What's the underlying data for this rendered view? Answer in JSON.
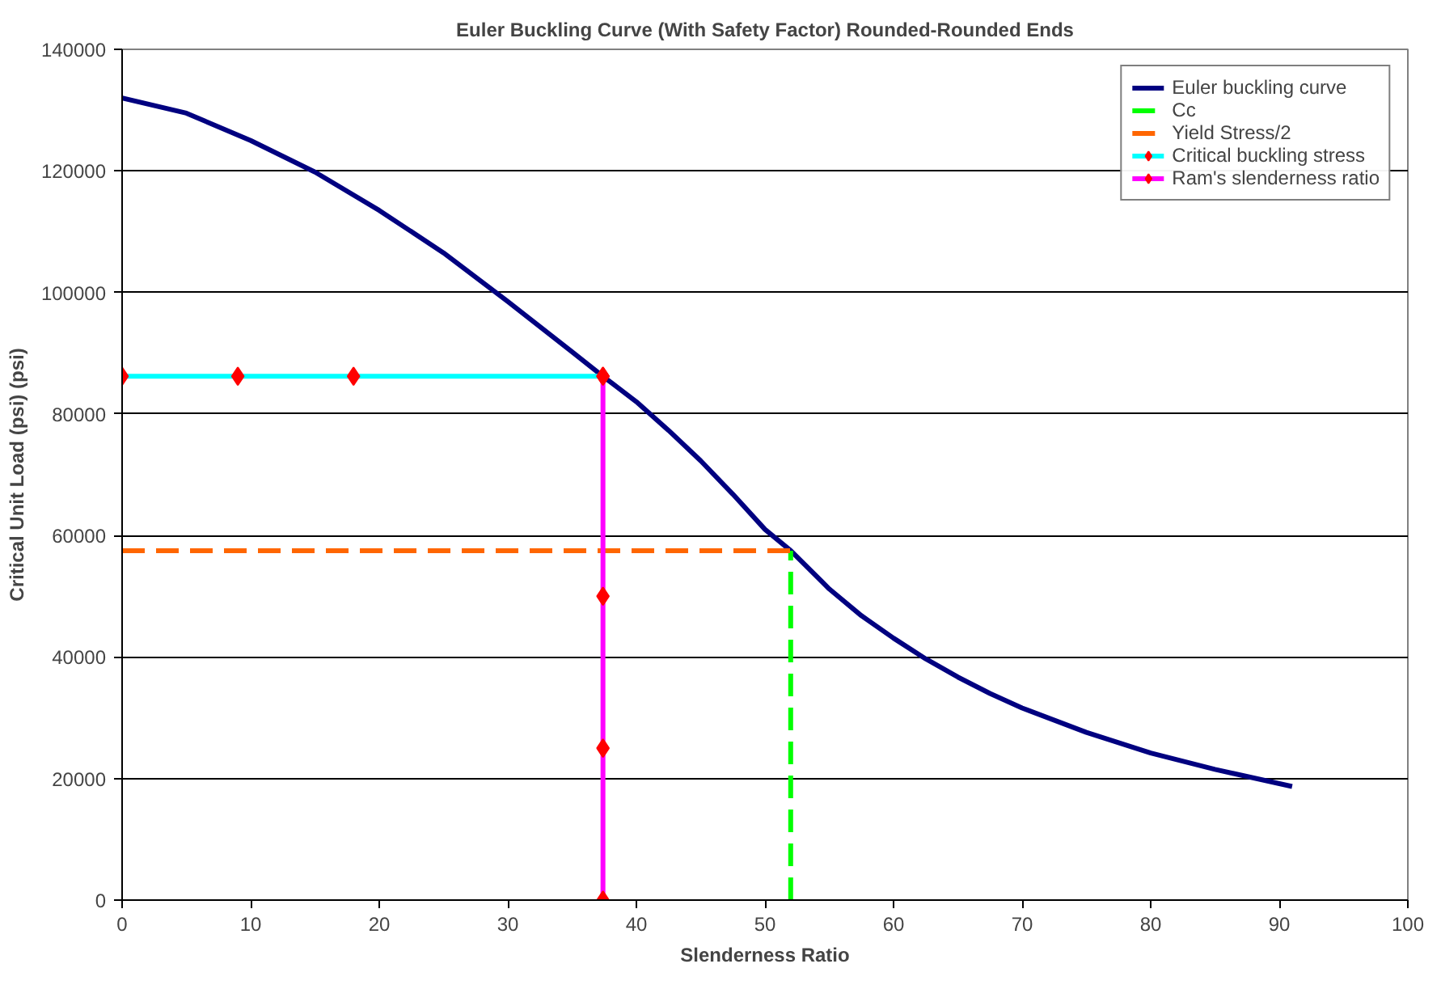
{
  "chart_data": {
    "type": "line",
    "title": "Euler Buckling Curve (With Safety Factor) Rounded-Rounded Ends",
    "xlabel": "Slenderness Ratio",
    "ylabel": "Critical Unit Load (psi) (psi)",
    "xlim": [
      0,
      100
    ],
    "xticks": [
      0,
      10,
      20,
      30,
      40,
      50,
      60,
      70,
      80,
      90,
      100
    ],
    "ylim": [
      0,
      140000
    ],
    "yticks": [
      0,
      20000,
      40000,
      60000,
      80000,
      100000,
      120000,
      140000
    ],
    "grid": "y",
    "legend": "top right",
    "series": [
      {
        "name": "Euler buckling curve",
        "color": "#000080",
        "marker": "none",
        "line_style": "solid",
        "x": [
          0,
          5,
          10,
          15,
          20,
          25,
          30,
          35,
          37.4,
          40,
          42.5,
          45,
          47.5,
          50,
          52,
          55,
          57.5,
          60,
          62.5,
          65,
          67.5,
          70,
          75,
          80,
          85,
          91
        ],
        "values": [
          132000,
          129500,
          125000,
          119800,
          113500,
          106500,
          98500,
          90200,
          86200,
          82000,
          77300,
          72300,
          66800,
          61000,
          57500,
          51200,
          46800,
          43100,
          39700,
          36700,
          34000,
          31600,
          27600,
          24200,
          21500,
          18700
        ]
      },
      {
        "name": "Cc",
        "color": "#00ff00",
        "marker": "none",
        "line_style": "dashed",
        "x": [
          52,
          52
        ],
        "values": [
          0,
          57500
        ]
      },
      {
        "name": "Yield Stress/2",
        "color": "#ff6600",
        "marker": "none",
        "line_style": "dashed",
        "x": [
          0,
          52
        ],
        "values": [
          57500,
          57500
        ]
      },
      {
        "name": "Critical buckling stress",
        "color": "#00ffff",
        "marker": "diamond",
        "line_style": "solid",
        "x": [
          0,
          9,
          18,
          37.4
        ],
        "values": [
          86200,
          86200,
          86200,
          86200
        ]
      },
      {
        "name": "Ram's slenderness ratio",
        "color": "#ff00ff",
        "marker": "diamond",
        "line_style": "solid",
        "x": [
          37.4,
          37.4,
          37.4,
          37.4
        ],
        "values": [
          86200,
          50000,
          25000,
          0
        ]
      }
    ]
  }
}
